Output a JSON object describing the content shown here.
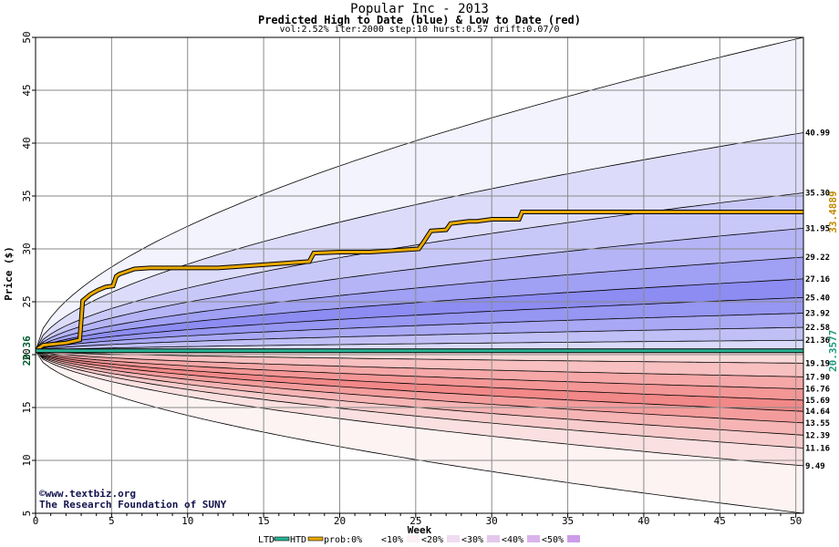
{
  "chart_data": {
    "type": "area",
    "title": "Popular Inc - 2013",
    "subtitle": "Predicted High to Date (blue) &  Low to Date (red)",
    "params": "vol:2.52% iter:2000 step:10 hurst:0.57 drift:0.07/0",
    "xlabel": "Week",
    "ylabel": "Price ($)",
    "xlim": [
      0,
      50.5
    ],
    "ylim": [
      5,
      50
    ],
    "x_ticks": [
      0,
      5,
      10,
      15,
      20,
      25,
      30,
      35,
      40,
      45,
      50
    ],
    "y_ticks": [
      5,
      10,
      15,
      20,
      25,
      30,
      35,
      40,
      45,
      50
    ],
    "start_price": 20.36,
    "start_label": "20.36",
    "credits": [
      "©www.textbiz.org",
      "The Research Foundation of SUNY"
    ],
    "high_bands": [
      {
        "end": 50.0,
        "label": "",
        "color": "#f3f3fe"
      },
      {
        "end": 40.99,
        "label": "40.99",
        "color": "#dcdcfa"
      },
      {
        "end": 35.3,
        "label": "35.30",
        "color": "#c8c8f8"
      },
      {
        "end": 31.95,
        "label": "31.95",
        "color": "#b4b4f6"
      },
      {
        "end": 29.22,
        "label": "29.22",
        "color": "#a0a0f4"
      },
      {
        "end": 27.16,
        "label": "27.16",
        "color": "#8c8cf2"
      },
      {
        "end": 25.4,
        "label": "25.40",
        "color": "#9696f3"
      },
      {
        "end": 23.92,
        "label": "23.92",
        "color": "#a8a8f5"
      },
      {
        "end": 22.58,
        "label": "22.58",
        "color": "#c0c0f7"
      },
      {
        "end": 21.36,
        "label": "21.36",
        "color": "#dadafa"
      }
    ],
    "low_bands": [
      {
        "end": 5.0,
        "label": "",
        "color": "#fdf3f3"
      },
      {
        "end": 9.49,
        "label": "9.49",
        "color": "#fae0e0"
      },
      {
        "end": 11.16,
        "label": "11.16",
        "color": "#f8cccc"
      },
      {
        "end": 12.39,
        "label": "12.39",
        "color": "#f6b4b4"
      },
      {
        "end": 13.55,
        "label": "13.55",
        "color": "#f49c9c"
      },
      {
        "end": 14.64,
        "label": "14.64",
        "color": "#f28888"
      },
      {
        "end": 15.69,
        "label": "15.69",
        "color": "#f49696"
      },
      {
        "end": 16.76,
        "label": "16.76",
        "color": "#f6a8a8"
      },
      {
        "end": 17.9,
        "label": "17.90",
        "color": "#f8c0c0"
      },
      {
        "end": 19.19,
        "label": "19.19",
        "color": "#fad8d8"
      }
    ],
    "series": [
      {
        "name": "HTD",
        "color": "#e8a800",
        "end_label": "33.4889",
        "x": [
          0,
          0.5,
          2.0,
          2.9,
          3.1,
          3.6,
          4.1,
          4.6,
          5.1,
          5.3,
          5.5,
          6.5,
          7.5,
          12.0,
          15.0,
          18.0,
          18.3,
          20.0,
          22.0,
          25.2,
          25.5,
          26.0,
          27.0,
          27.3,
          28.5,
          29.0,
          30.0,
          31.8,
          32.0,
          50.5
        ],
        "y": [
          20.4,
          20.9,
          21.1,
          21.4,
          25.1,
          25.7,
          26.1,
          26.4,
          26.5,
          27.4,
          27.6,
          28.1,
          28.2,
          28.2,
          28.5,
          28.8,
          29.6,
          29.7,
          29.7,
          30.0,
          30.6,
          31.7,
          31.8,
          32.4,
          32.6,
          32.6,
          32.8,
          32.8,
          33.49,
          33.49
        ]
      },
      {
        "name": "LTD",
        "color": "#29b394",
        "end_label": "20.3577",
        "x": [
          0,
          50.5
        ],
        "y": [
          20.36,
          20.36
        ]
      }
    ],
    "legend": {
      "items": [
        "LTD",
        "HTD",
        "prob:0%",
        "<10%",
        "<20%",
        "<30%",
        "<40%",
        "<50%"
      ],
      "colors": [
        "#29b394",
        "#e8a800",
        "#ffffff",
        "#fbf0f4",
        "#f0dcf0",
        "#e4c8ec",
        "#d8b4ea",
        "#cc9ce8"
      ],
      "placement": "bottom-center"
    }
  }
}
